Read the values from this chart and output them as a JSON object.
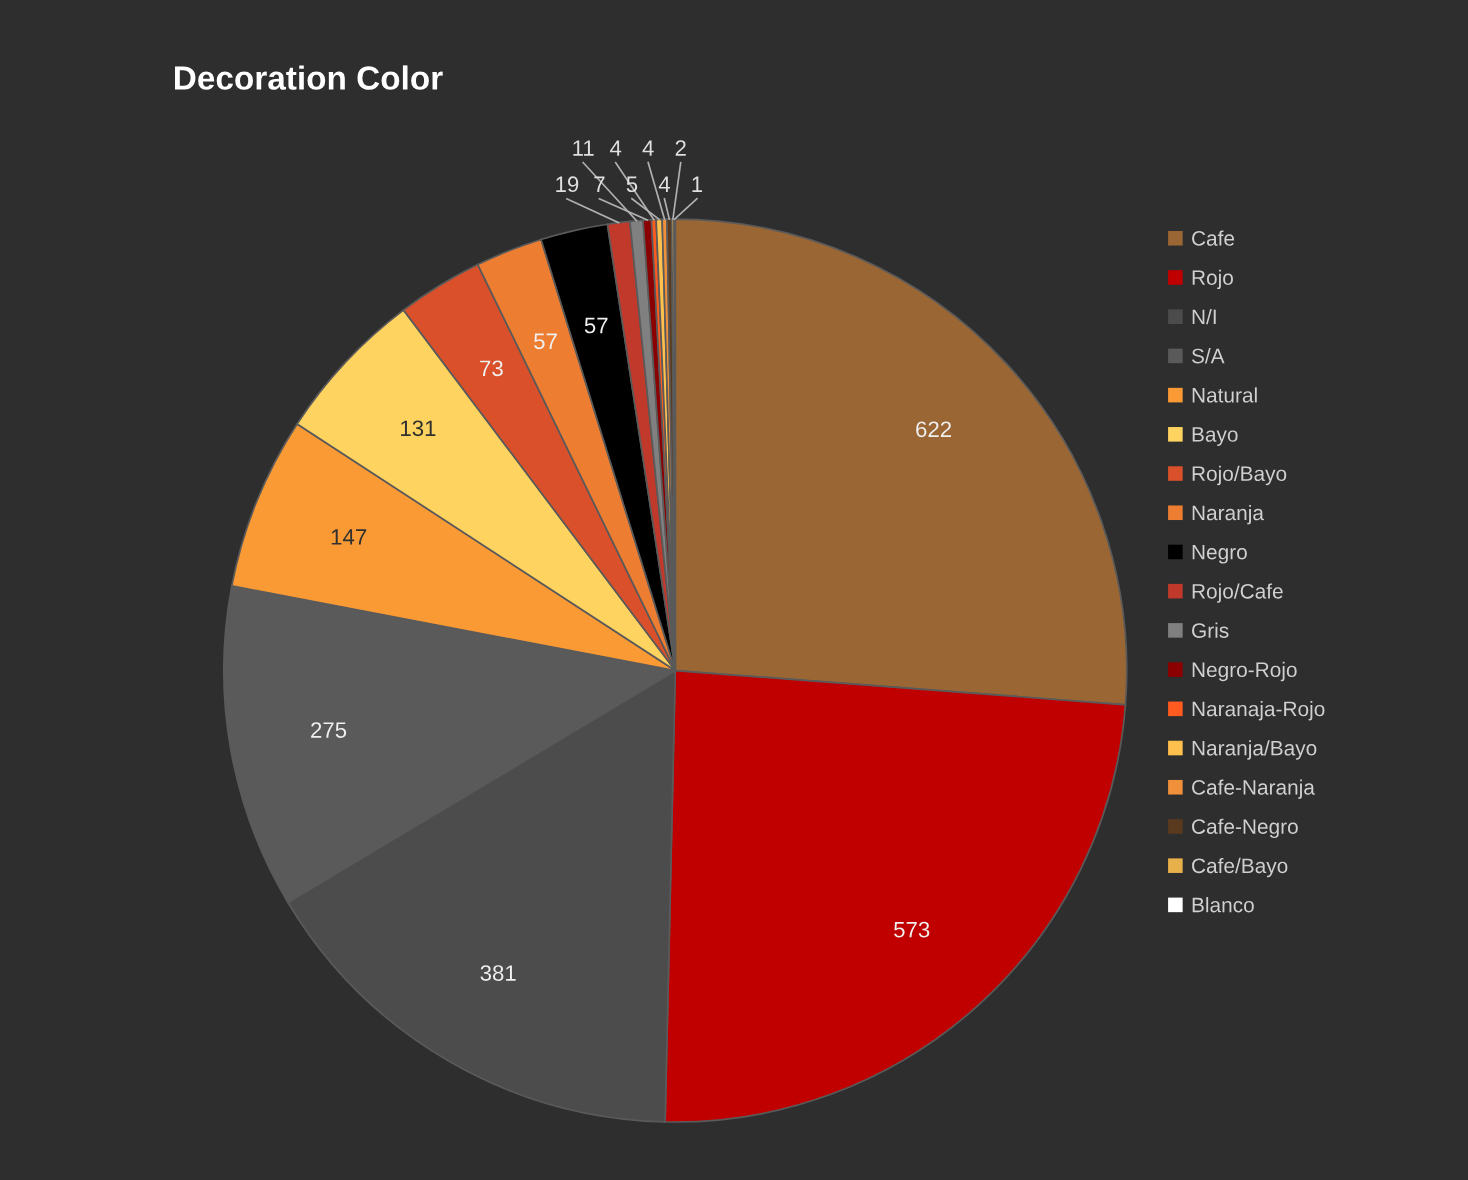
{
  "chart_data": {
    "type": "pie",
    "title": "Decoration Color",
    "categories": [
      "Cafe",
      "Rojo",
      "N/I",
      "S/A",
      "Natural",
      "Bayo",
      "Rojo/Bayo",
      "Naranja",
      "Negro",
      "Rojo/Cafe",
      "Gris",
      "Negro-Rojo",
      "Naranaja-Rojo",
      "Naranja/Bayo",
      "Cafe-Naranja",
      "Cafe-Negro",
      "Cafe/Bayo",
      "Blanco"
    ],
    "values": [
      622,
      573,
      381,
      275,
      147,
      131,
      73,
      57,
      57,
      19,
      11,
      7,
      4,
      5,
      4,
      4,
      2,
      1
    ],
    "colors": [
      "#9a6634",
      "#c00000",
      "#4c4c4c",
      "#5a5a5a",
      "#fa9a35",
      "#ffd35f",
      "#d9502a",
      "#ed7d31",
      "#000000",
      "#c0392b",
      "#808080",
      "#8b0000",
      "#ff5a1f",
      "#ffc04d",
      "#f0903a",
      "#5a3a1e",
      "#e8b04a",
      "#ffffff"
    ],
    "data_labels": true,
    "legend": "right"
  }
}
